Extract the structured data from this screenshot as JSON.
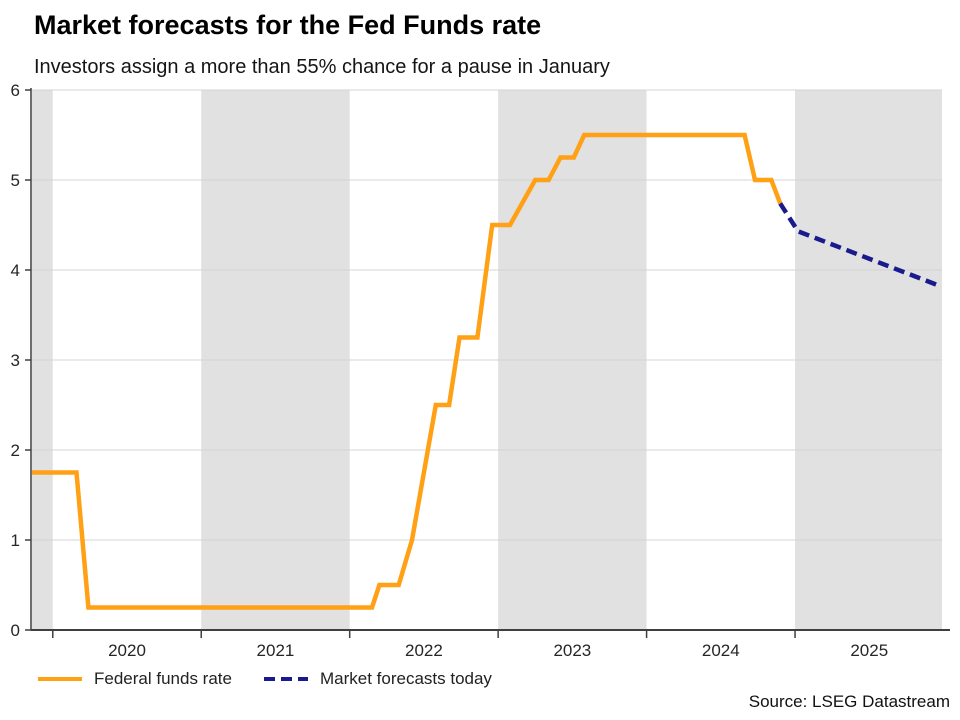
{
  "source": "Source: LSEG Datastream",
  "chart_data": {
    "type": "line",
    "title": "Market forecasts for the Fed Funds rate",
    "subtitle": "Investors assign a more than 55% chance for a pause in January",
    "x_axis": {
      "range": [
        2019.86,
        2025.99
      ],
      "ticks": [
        2020,
        2021,
        2022,
        2023,
        2024,
        2025
      ],
      "labels": [
        "2020",
        "2021",
        "2022",
        "2023",
        "2024",
        "2025"
      ]
    },
    "y_axis": {
      "range": [
        0,
        6
      ],
      "ticks": [
        0,
        1,
        2,
        3,
        4,
        5,
        6
      ],
      "labels": [
        "0",
        "1",
        "2",
        "3",
        "4",
        "5",
        "6"
      ]
    },
    "grid": "horizontal",
    "bands": {
      "color": "#E1E1E1",
      "spans": [
        [
          2019.86,
          2020
        ],
        [
          2021,
          2022
        ],
        [
          2023,
          2024
        ],
        [
          2025,
          2025.99
        ]
      ]
    },
    "colors": {
      "gridline": "#D4D4D4",
      "axis": "#3F3F3F",
      "tick_text": "#262626"
    },
    "series": [
      {
        "name": "Federal funds rate",
        "color": "#FFA015",
        "dash": null,
        "points": [
          [
            2019.86,
            1.75
          ],
          [
            2020.16,
            1.75
          ],
          [
            2020.24,
            0.25
          ],
          [
            2022.15,
            0.25
          ],
          [
            2022.2,
            0.5
          ],
          [
            2022.33,
            0.5
          ],
          [
            2022.42,
            1.0
          ],
          [
            2022.5,
            1.75
          ],
          [
            2022.58,
            2.5
          ],
          [
            2022.67,
            2.5
          ],
          [
            2022.74,
            3.25
          ],
          [
            2022.86,
            3.25
          ],
          [
            2022.96,
            4.5
          ],
          [
            2023.08,
            4.5
          ],
          [
            2023.25,
            5.0
          ],
          [
            2023.34,
            5.0
          ],
          [
            2023.42,
            5.25
          ],
          [
            2023.51,
            5.25
          ],
          [
            2023.58,
            5.5
          ],
          [
            2024.66,
            5.5
          ],
          [
            2024.73,
            5.0
          ],
          [
            2024.84,
            5.0
          ],
          [
            2024.9,
            4.74
          ]
        ]
      },
      {
        "name": "Market forecasts today",
        "color": "#1A1A8F",
        "dash": "11 6",
        "points": [
          [
            2024.9,
            4.74
          ],
          [
            2025.02,
            4.43
          ],
          [
            2025.98,
            3.82
          ]
        ]
      }
    ]
  }
}
